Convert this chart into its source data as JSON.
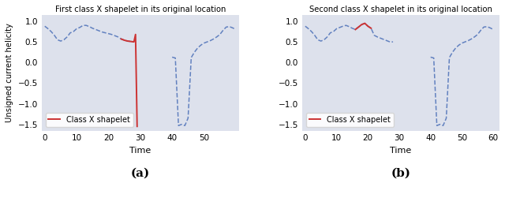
{
  "title_a": "First class X shapelet in its original location",
  "title_b": "Second class X shapelet in its original location",
  "xlabel": "Time",
  "ylabel": "Unsigned current helicity",
  "legend_label": "Class X shapelet",
  "xlim_a": [
    -1,
    61
  ],
  "xlim_b": [
    -1,
    62
  ],
  "ylim": [
    -1.65,
    1.15
  ],
  "xticks_a": [
    0,
    10,
    20,
    30,
    40,
    50
  ],
  "xticks_b": [
    0,
    10,
    20,
    30,
    40,
    50,
    60
  ],
  "yticks": [
    -1.5,
    -1.0,
    -0.5,
    0.0,
    0.5,
    1.0
  ],
  "bg_color": "#dde1ec",
  "line_color": "#5577bb",
  "shapelet_color": "#cc3333",
  "label_a": "(a)",
  "label_b": "(b)",
  "ts_a_seg1_x": [
    0,
    1,
    2,
    3,
    4,
    5,
    6,
    7,
    8,
    9,
    10,
    11,
    12,
    13,
    14,
    15,
    16,
    17,
    18,
    19,
    20,
    21,
    22,
    23,
    24,
    25,
    26,
    27,
    28
  ],
  "ts_a_seg1_y": [
    0.88,
    0.82,
    0.75,
    0.66,
    0.55,
    0.52,
    0.55,
    0.62,
    0.72,
    0.75,
    0.82,
    0.85,
    0.9,
    0.9,
    0.87,
    0.83,
    0.8,
    0.77,
    0.74,
    0.72,
    0.7,
    0.68,
    0.65,
    0.62,
    0.57,
    0.54,
    0.52,
    0.51,
    0.5
  ],
  "shap_a_x": [
    24,
    25,
    26,
    27,
    28,
    28.5,
    29
  ],
  "shap_a_y": [
    0.57,
    0.54,
    0.52,
    0.51,
    0.5,
    0.68,
    -1.55
  ],
  "ts_a_seg2_x": [
    40,
    41,
    42,
    43,
    44,
    45,
    46,
    47,
    48,
    49,
    50,
    51,
    52,
    53,
    54,
    55,
    56,
    57,
    58,
    59,
    60
  ],
  "ts_a_seg2_y": [
    0.13,
    0.11,
    -1.53,
    -1.5,
    -1.53,
    -1.35,
    0.12,
    0.25,
    0.35,
    0.42,
    0.47,
    0.5,
    0.53,
    0.57,
    0.62,
    0.68,
    0.78,
    0.86,
    0.87,
    0.84,
    0.8
  ],
  "ts_b_seg1_x": [
    0,
    1,
    2,
    3,
    4,
    5,
    6,
    7,
    8,
    9,
    10,
    11,
    12,
    13,
    14,
    15,
    16,
    17,
    18,
    19,
    20,
    21,
    22,
    23,
    24,
    25,
    26,
    27,
    28
  ],
  "ts_b_seg1_y": [
    0.88,
    0.82,
    0.75,
    0.66,
    0.55,
    0.52,
    0.55,
    0.62,
    0.72,
    0.75,
    0.82,
    0.85,
    0.88,
    0.9,
    0.87,
    0.83,
    0.8,
    0.86,
    0.92,
    0.95,
    0.88,
    0.83,
    0.66,
    0.62,
    0.59,
    0.56,
    0.53,
    0.5,
    0.5
  ],
  "shap_b_x": [
    16,
    17,
    18,
    19,
    20,
    21
  ],
  "shap_b_y": [
    0.8,
    0.86,
    0.92,
    0.95,
    0.88,
    0.83
  ],
  "ts_b_seg2_x": [
    40,
    41,
    42,
    43,
    44,
    45,
    46,
    47,
    48,
    49,
    50,
    51,
    52,
    53,
    54,
    55,
    56,
    57,
    58,
    59,
    60
  ],
  "ts_b_seg2_y": [
    0.13,
    0.11,
    -1.53,
    -1.5,
    -1.53,
    -1.35,
    0.12,
    0.25,
    0.35,
    0.42,
    0.47,
    0.5,
    0.53,
    0.57,
    0.62,
    0.68,
    0.78,
    0.86,
    0.87,
    0.84,
    0.8
  ]
}
